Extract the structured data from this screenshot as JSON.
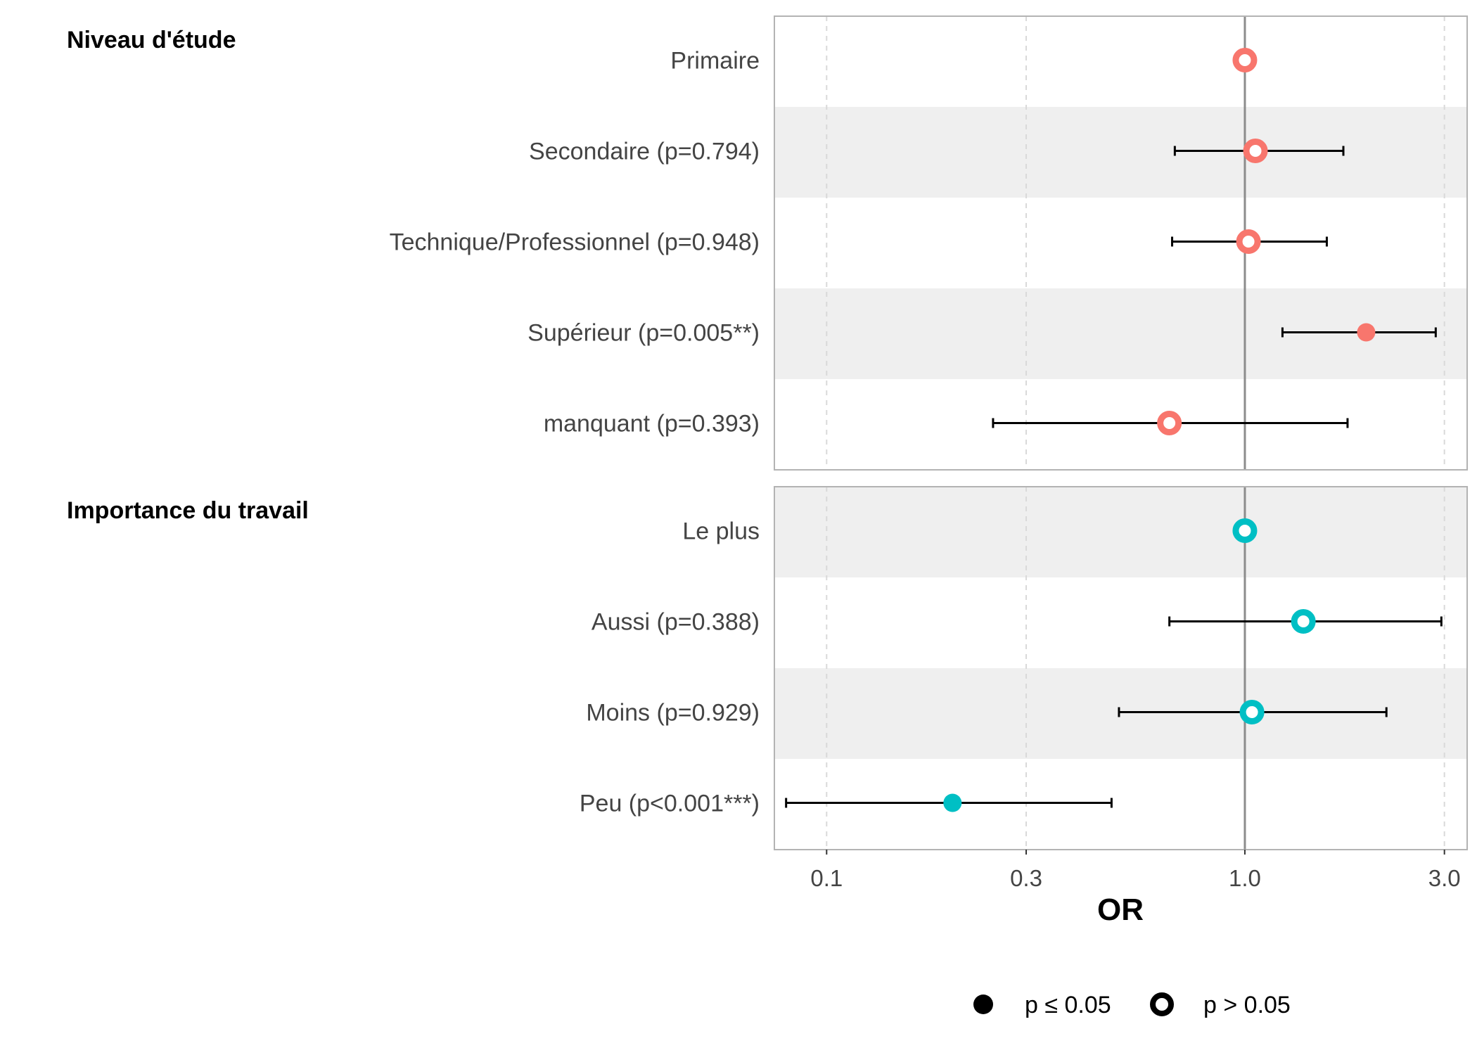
{
  "chart_data": {
    "type": "forest",
    "xlabel": "OR",
    "x_scale": "log",
    "xlim": [
      0.075,
      3.4
    ],
    "reference_line": 1.0,
    "x_ticks": [
      {
        "value": 0.1,
        "label": "0.1"
      },
      {
        "value": 0.3,
        "label": "0.3"
      },
      {
        "value": 1.0,
        "label": "1.0"
      },
      {
        "value": 3.0,
        "label": "3.0"
      }
    ],
    "groups": [
      {
        "title": "Niveau d'étude",
        "color": "#F8766D",
        "rows": [
          {
            "label": "Primaire",
            "or": 1.0,
            "ci_low": null,
            "ci_high": null,
            "significant": false
          },
          {
            "label": "Secondaire (p=0.794)",
            "or": 1.06,
            "ci_low": 0.68,
            "ci_high": 1.72,
            "significant": false
          },
          {
            "label": "Technique/Professionnel (p=0.948)",
            "or": 1.02,
            "ci_low": 0.67,
            "ci_high": 1.57,
            "significant": false
          },
          {
            "label": "Supérieur (p=0.005**)",
            "or": 1.95,
            "ci_low": 1.23,
            "ci_high": 2.86,
            "significant": true
          },
          {
            "label": "manquant (p=0.393)",
            "or": 0.66,
            "ci_low": 0.25,
            "ci_high": 1.76,
            "significant": false
          }
        ]
      },
      {
        "title": "Importance du travail",
        "color": "#00BFC4",
        "rows": [
          {
            "label": "Le plus",
            "or": 1.0,
            "ci_low": null,
            "ci_high": null,
            "significant": false
          },
          {
            "label": "Aussi (p=0.388)",
            "or": 1.38,
            "ci_low": 0.66,
            "ci_high": 2.95,
            "significant": false
          },
          {
            "label": "Moins (p=0.929)",
            "or": 1.04,
            "ci_low": 0.5,
            "ci_high": 2.18,
            "significant": false
          },
          {
            "label": "Peu (p<0.001***)",
            "or": 0.2,
            "ci_low": 0.08,
            "ci_high": 0.48,
            "significant": true
          }
        ]
      }
    ],
    "legend": {
      "position": "bottom",
      "items": [
        {
          "label": "p ≤ 0.05",
          "style": "filled"
        },
        {
          "label": "p > 0.05",
          "style": "hollow"
        }
      ]
    }
  }
}
